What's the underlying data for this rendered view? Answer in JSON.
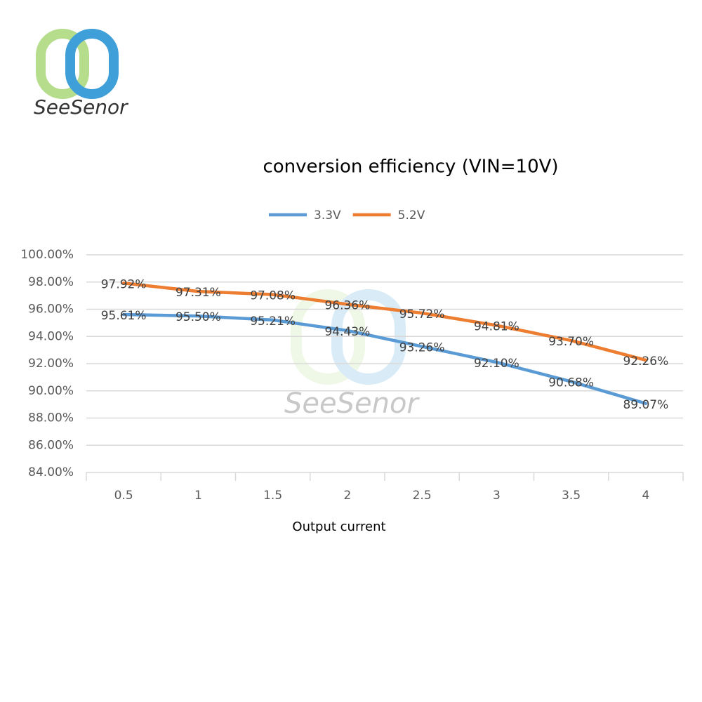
{
  "brand": "SeeSenor",
  "chart_data": {
    "type": "line",
    "title": "conversion efficiency (VIN=10V)",
    "x_label": "Output current",
    "categories": [
      "0.5",
      "1",
      "1.5",
      "2",
      "2.5",
      "3",
      "3.5",
      "4"
    ],
    "series": [
      {
        "name": "3.3V",
        "color": "#5b9bd5",
        "values": [
          95.61,
          95.5,
          95.21,
          94.43,
          93.26,
          92.1,
          90.68,
          89.07
        ],
        "value_labels": [
          "95.61%",
          "95.50%",
          "95.21%",
          "94.43%",
          "93.26%",
          "92.10%",
          "90.68%",
          "89.07%"
        ]
      },
      {
        "name": "5.2V",
        "color": "#ed7d31",
        "values": [
          97.92,
          97.31,
          97.08,
          96.36,
          95.72,
          94.81,
          93.7,
          92.26
        ],
        "value_labels": [
          "97.92%",
          "97.31%",
          "97.08%",
          "96.36%",
          "95.72%",
          "94.81%",
          "93.70%",
          "92.26%"
        ]
      }
    ],
    "ylim": [
      84,
      100
    ],
    "yticks": [
      {
        "value": 84,
        "label": "84.00%"
      },
      {
        "value": 86,
        "label": "86.00%"
      },
      {
        "value": 88,
        "label": "88.00%"
      },
      {
        "value": 90,
        "label": "90.00%"
      },
      {
        "value": 92,
        "label": "92.00%"
      },
      {
        "value": 94,
        "label": "94.00%"
      },
      {
        "value": 96,
        "label": "96.00%"
      },
      {
        "value": 98,
        "label": "98.00%"
      },
      {
        "value": 100,
        "label": "100.00%"
      }
    ],
    "grid": true,
    "legend": "top"
  }
}
